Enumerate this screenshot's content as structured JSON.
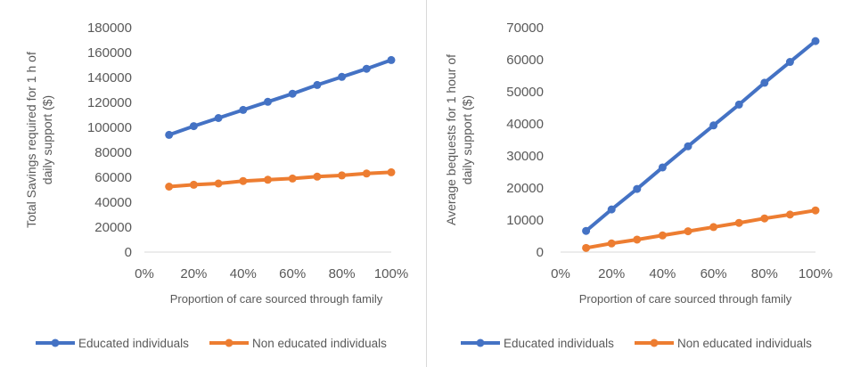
{
  "chart_data": [
    {
      "type": "line",
      "x": [
        "10%",
        "20%",
        "30%",
        "40%",
        "50%",
        "60%",
        "70%",
        "80%",
        "90%",
        "100%"
      ],
      "xticks": [
        "0%",
        "20%",
        "40%",
        "60%",
        "80%",
        "100%"
      ],
      "xlim": [
        0,
        100
      ],
      "xlabel": "Proportion of care sourced through family",
      "ylabel": "Total Savings required for 1 h of daily support ($)",
      "ylim": [
        0,
        180000
      ],
      "yticks": [
        "0",
        "20000",
        "40000",
        "60000",
        "80000",
        "100000",
        "120000",
        "140000",
        "160000",
        "180000"
      ],
      "grid": false,
      "legend": "bottom",
      "series": [
        {
          "name": "Educated individuals",
          "color": "#4472C4",
          "values": [
            94000,
            101000,
            107500,
            114000,
            120500,
            127000,
            134000,
            140500,
            147000,
            154000
          ]
        },
        {
          "name": "Non educated individuals",
          "color": "#ED7D31",
          "values": [
            52500,
            54000,
            55000,
            57000,
            58000,
            59000,
            60500,
            61500,
            63000,
            64000
          ]
        }
      ]
    },
    {
      "type": "line",
      "x": [
        "10%",
        "20%",
        "30%",
        "40%",
        "50%",
        "60%",
        "70%",
        "80%",
        "90%",
        "100%"
      ],
      "xticks": [
        "0%",
        "20%",
        "40%",
        "60%",
        "80%",
        "100%"
      ],
      "xlim": [
        0,
        100
      ],
      "xlabel": "Proportion of care sourced through family",
      "ylabel": "Average bequests for 1 hour of daily support  ($)",
      "ylim": [
        0,
        70000
      ],
      "yticks": [
        "0",
        "10000",
        "20000",
        "30000",
        "40000",
        "50000",
        "60000",
        "70000"
      ],
      "grid": false,
      "legend": "bottom",
      "series": [
        {
          "name": "Educated individuals",
          "color": "#4472C4",
          "values": [
            6600,
            13300,
            19700,
            26400,
            33000,
            39500,
            46000,
            52800,
            59300,
            65800
          ]
        },
        {
          "name": "Non educated individuals",
          "color": "#ED7D31",
          "values": [
            1300,
            2700,
            3900,
            5200,
            6500,
            7800,
            9100,
            10500,
            11700,
            13000
          ]
        }
      ]
    }
  ]
}
